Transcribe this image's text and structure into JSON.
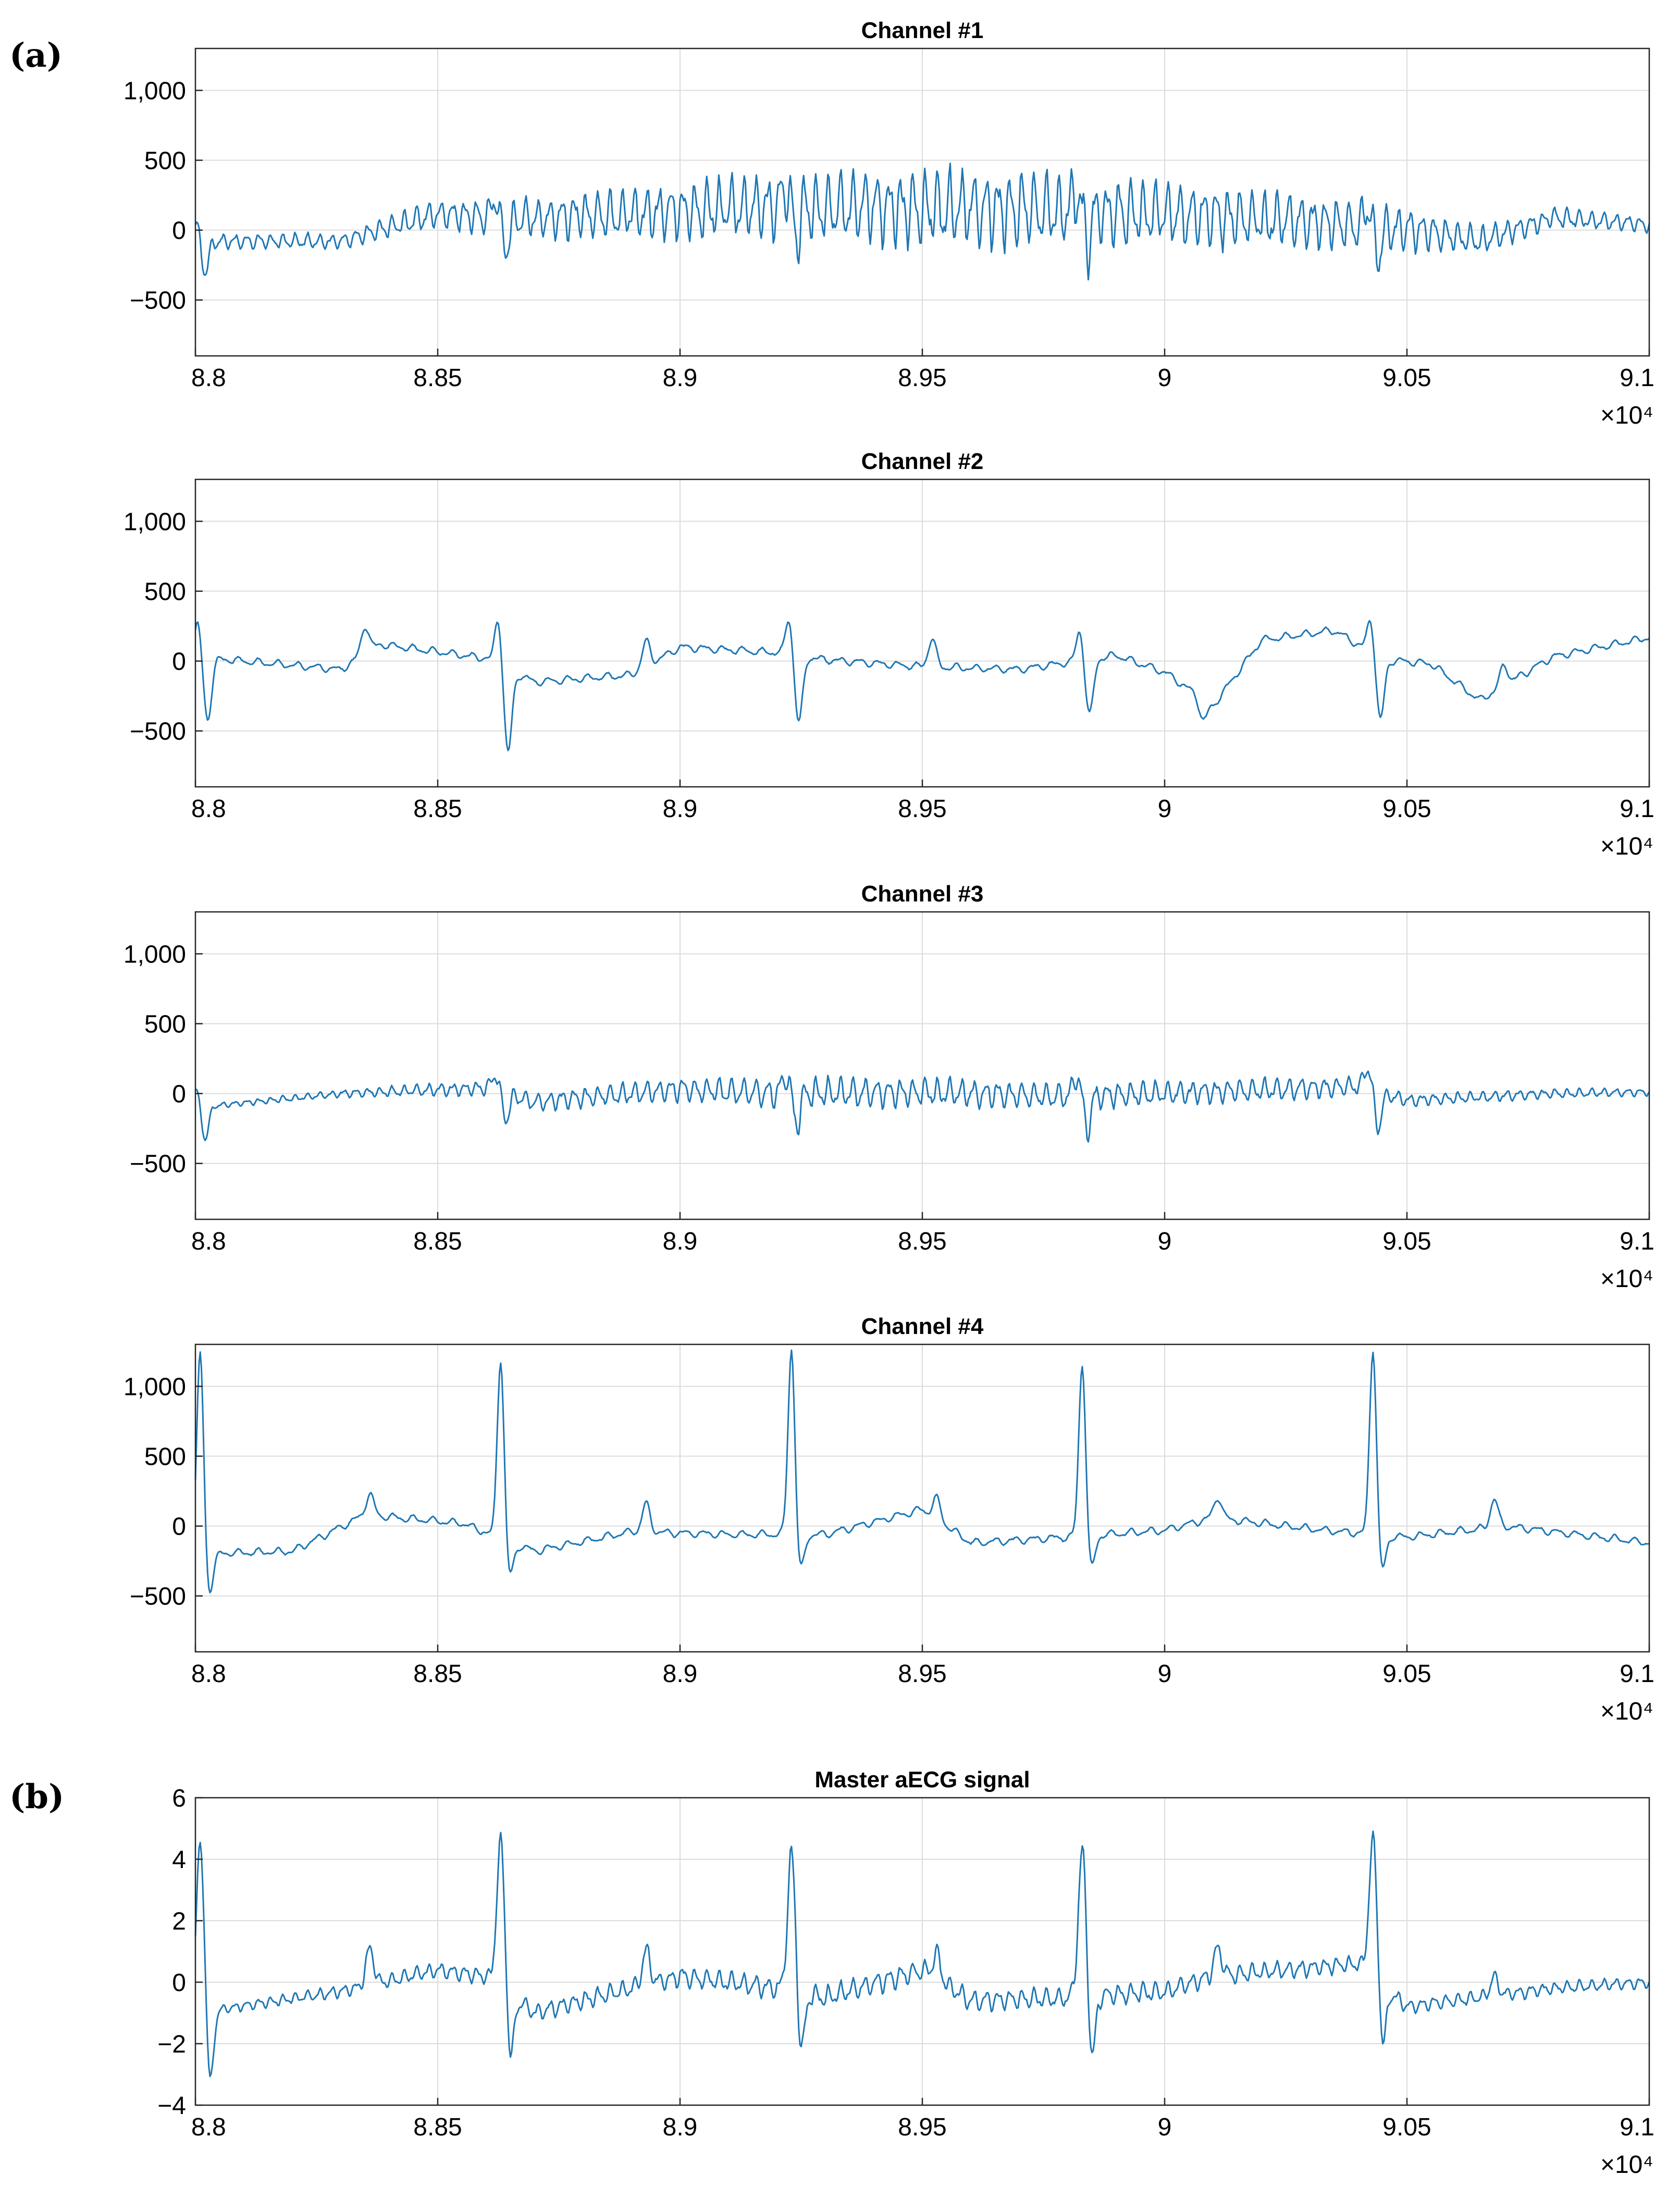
{
  "panel_labels": [
    "(a)",
    "(b)"
  ],
  "chart_data": [
    {
      "type": "line",
      "title": "Channel #1",
      "panel": "(a)",
      "xlim": [
        88000,
        91000
      ],
      "ylim": [
        -900,
        1300
      ],
      "x_ticks": [
        88000,
        88500,
        89000,
        89500,
        90000,
        90500,
        91000
      ],
      "x_tick_labels": [
        "8.8",
        "8.85",
        "8.9",
        "8.95",
        "9",
        "9.05",
        "9.1"
      ],
      "x_exponent_label": "×10⁴",
      "y_ticks": [
        1000,
        500,
        0,
        -500
      ],
      "y_tick_labels": [
        "1,000",
        "500",
        "0",
        "−500"
      ],
      "grid": true,
      "series": [
        {
          "name": "Channel #1",
          "baseline": [
            [
              88000,
              -80
            ],
            [
              88300,
              -80
            ],
            [
              88500,
              120
            ],
            [
              88650,
              80
            ],
            [
              88900,
              120
            ],
            [
              89200,
              170
            ],
            [
              89500,
              160
            ],
            [
              89800,
              140
            ],
            [
              90000,
              110
            ],
            [
              90300,
              60
            ],
            [
              90500,
              10
            ],
            [
              90650,
              -80
            ],
            [
              90800,
              90
            ],
            [
              91000,
              40
            ]
          ],
          "oscillation_amplitude": [
            [
              88000,
              60
            ],
            [
              88300,
              60
            ],
            [
              88500,
              110
            ],
            [
              88900,
              200
            ],
            [
              89200,
              260
            ],
            [
              89500,
              310
            ],
            [
              89800,
              280
            ],
            [
              90000,
              250
            ],
            [
              90300,
              210
            ],
            [
              90500,
              170
            ],
            [
              90650,
              110
            ],
            [
              90800,
              80
            ],
            [
              91000,
              60
            ]
          ],
          "oscillation_period": 25,
          "beats": [
            88000,
            88620,
            89220,
            89820,
            90420
          ],
          "beat_shape": "notch",
          "beat_amplitude": 380
        }
      ]
    },
    {
      "type": "line",
      "title": "Channel #2",
      "panel": "(a)",
      "xlim": [
        88000,
        91000
      ],
      "ylim": [
        -900,
        1300
      ],
      "x_ticks": [
        88000,
        88500,
        89000,
        89500,
        90000,
        90500,
        91000
      ],
      "x_tick_labels": [
        "8.8",
        "8.85",
        "8.9",
        "8.95",
        "9",
        "9.05",
        "9.1"
      ],
      "x_exponent_label": "×10⁴",
      "y_ticks": [
        1000,
        500,
        0,
        -500
      ],
      "y_tick_labels": [
        "1,000",
        "500",
        "0",
        "−500"
      ],
      "grid": true,
      "series": [
        {
          "name": "Channel #2",
          "baseline": [
            [
              88000,
              30
            ],
            [
              88300,
              -60
            ],
            [
              88380,
              120
            ],
            [
              88600,
              20
            ],
            [
              88700,
              -150
            ],
            [
              88900,
              -100
            ],
            [
              89000,
              100
            ],
            [
              89200,
              60
            ],
            [
              89300,
              10
            ],
            [
              89500,
              -40
            ],
            [
              89700,
              -60
            ],
            [
              89900,
              40
            ],
            [
              90000,
              -80
            ],
            [
              90100,
              -320
            ],
            [
              90200,
              150
            ],
            [
              90350,
              220
            ],
            [
              90450,
              10
            ],
            [
              90550,
              -20
            ],
            [
              90650,
              -280
            ],
            [
              90800,
              30
            ],
            [
              91000,
              170
            ]
          ],
          "oscillation_amplitude": [
            [
              88000,
              30
            ],
            [
              91000,
              30
            ]
          ],
          "oscillation_period": 40,
          "beats": [
            88000,
            88620,
            89220,
            89820,
            90420
          ],
          "beat_shape": "biphasic",
          "beat_amplitude": [
            550,
            750,
            600,
            500,
            550
          ],
          "secondary_bumps": [
            [
              88350,
              200
            ],
            [
              88930,
              180
            ],
            [
              89520,
              200
            ],
            [
              90080,
              -150
            ],
            [
              90700,
              150
            ]
          ]
        }
      ]
    },
    {
      "type": "line",
      "title": "Channel #3",
      "panel": "(a)",
      "xlim": [
        88000,
        91000
      ],
      "ylim": [
        -900,
        1300
      ],
      "x_ticks": [
        88000,
        88500,
        89000,
        89500,
        90000,
        90500,
        91000
      ],
      "x_tick_labels": [
        "8.8",
        "8.85",
        "8.9",
        "8.95",
        "9",
        "9.05",
        "9.1"
      ],
      "x_exponent_label": "×10⁴",
      "y_ticks": [
        1000,
        500,
        0,
        -500
      ],
      "y_tick_labels": [
        "1,000",
        "500",
        "0",
        "−500"
      ],
      "grid": true,
      "series": [
        {
          "name": "Channel #3",
          "baseline": [
            [
              88000,
              -100
            ],
            [
              88300,
              0
            ],
            [
              88600,
              40
            ],
            [
              88700,
              -60
            ],
            [
              89000,
              30
            ],
            [
              89200,
              0
            ],
            [
              89500,
              10
            ],
            [
              89800,
              -20
            ],
            [
              90000,
              0
            ],
            [
              90400,
              50
            ],
            [
              90500,
              -50
            ],
            [
              90800,
              0
            ],
            [
              91000,
              10
            ]
          ],
          "oscillation_amplitude": [
            [
              88000,
              20
            ],
            [
              88300,
              30
            ],
            [
              88700,
              70
            ],
            [
              89300,
              120
            ],
            [
              89800,
              100
            ],
            [
              90300,
              90
            ],
            [
              90500,
              50
            ],
            [
              91000,
              30
            ]
          ],
          "oscillation_period": 25,
          "beats": [
            88000,
            88620,
            89220,
            89820,
            90420
          ],
          "beat_shape": "notch",
          "beat_amplitude": [
            400,
            320,
            380,
            420,
            440
          ]
        }
      ]
    },
    {
      "type": "line",
      "title": "Channel #4",
      "panel": "(a)",
      "xlim": [
        88000,
        91000
      ],
      "ylim": [
        -900,
        1300
      ],
      "x_ticks": [
        88000,
        88500,
        89000,
        89500,
        90000,
        90500,
        91000
      ],
      "x_tick_labels": [
        "8.8",
        "8.85",
        "8.9",
        "8.95",
        "9",
        "9.05",
        "9.1"
      ],
      "x_exponent_label": "×10⁴",
      "y_ticks": [
        1000,
        500,
        0,
        -500
      ],
      "y_tick_labels": [
        "1,000",
        "500",
        "0",
        "−500"
      ],
      "grid": true,
      "series": [
        {
          "name": "Channel #4",
          "baseline": [
            [
              88000,
              -200
            ],
            [
              88200,
              -180
            ],
            [
              88350,
              80
            ],
            [
              88550,
              20
            ],
            [
              88700,
              -180
            ],
            [
              88900,
              -40
            ],
            [
              89100,
              -60
            ],
            [
              89300,
              -60
            ],
            [
              89500,
              120
            ],
            [
              89600,
              -120
            ],
            [
              89800,
              -80
            ],
            [
              90000,
              -30
            ],
            [
              90100,
              60
            ],
            [
              90300,
              -20
            ],
            [
              90500,
              -80
            ],
            [
              90700,
              0
            ],
            [
              91000,
              -120
            ]
          ],
          "oscillation_amplitude": [
            [
              88000,
              30
            ],
            [
              91000,
              30
            ]
          ],
          "oscillation_period": 40,
          "beats": [
            88000,
            88620,
            89220,
            89820,
            90420
          ],
          "beat_shape": "spike",
          "beat_amplitude": [
            1450,
            1300,
            1350,
            1250,
            1350
          ],
          "secondary_bumps": [
            [
              88360,
              150
            ],
            [
              88930,
              200
            ],
            [
              89530,
              150
            ],
            [
              90110,
              150
            ],
            [
              90680,
              200
            ]
          ]
        }
      ]
    },
    {
      "type": "line",
      "title": "Master aECG signal",
      "panel": "(b)",
      "xlim": [
        88000,
        91000
      ],
      "ylim": [
        -4,
        6
      ],
      "x_ticks": [
        88000,
        88500,
        89000,
        89500,
        90000,
        90500,
        91000
      ],
      "x_tick_labels": [
        "8.8",
        "8.85",
        "8.9",
        "8.95",
        "9",
        "9.05",
        "9.1"
      ],
      "x_exponent_label": "×10⁴",
      "y_ticks": [
        6,
        4,
        2,
        0,
        -2,
        -4
      ],
      "y_tick_labels": [
        "6",
        "4",
        "2",
        "0",
        "−2",
        "−4"
      ],
      "grid": true,
      "series": [
        {
          "name": "Master aECG signal",
          "baseline": [
            [
              88000,
              -1
            ],
            [
              88300,
              -0.3
            ],
            [
              88500,
              0.4
            ],
            [
              88600,
              0.2
            ],
            [
              88700,
              -1
            ],
            [
              89000,
              0.2
            ],
            [
              89200,
              -0.2
            ],
            [
              89300,
              -0.5
            ],
            [
              89500,
              0.4
            ],
            [
              89600,
              -0.6
            ],
            [
              89800,
              -0.5
            ],
            [
              90000,
              -0.3
            ],
            [
              90100,
              0.2
            ],
            [
              90400,
              0.6
            ],
            [
              90500,
              -0.8
            ],
            [
              90800,
              -0.2
            ],
            [
              91000,
              0
            ]
          ],
          "oscillation_amplitude": [
            [
              88000,
              0.15
            ],
            [
              88600,
              0.3
            ],
            [
              89300,
              0.4
            ],
            [
              90000,
              0.35
            ],
            [
              90600,
              0.25
            ],
            [
              91000,
              0.2
            ]
          ],
          "oscillation_period": 25,
          "beats": [
            88000,
            88620,
            89220,
            89820,
            90420
          ],
          "beat_shape": "spike_with_undershoot",
          "beat_amplitude": [
            5.5,
            4.8,
            4.5,
            4.8,
            4.5
          ],
          "secondary_bumps": [
            [
              88360,
              1.2
            ],
            [
              88930,
              1.1
            ],
            [
              89530,
              0.8
            ],
            [
              90110,
              0.9
            ],
            [
              90680,
              0.6
            ]
          ]
        }
      ]
    }
  ]
}
